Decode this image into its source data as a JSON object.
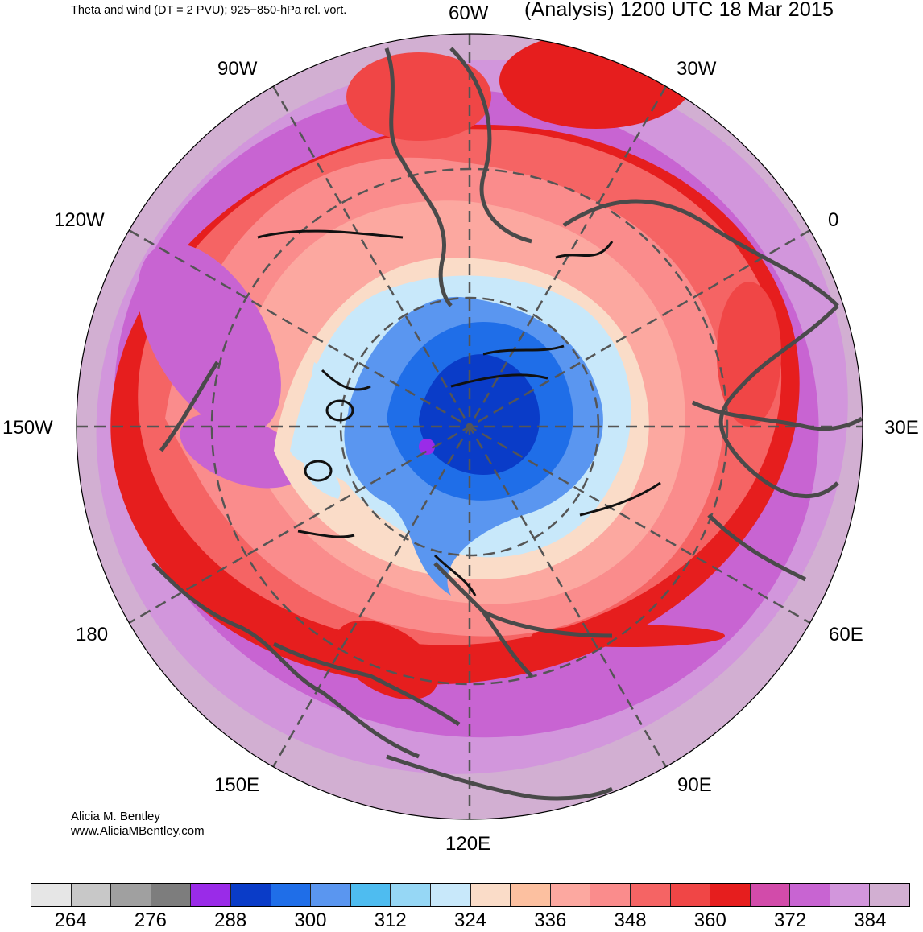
{
  "header": {
    "left_title": "Theta and wind (DT = 2 PVU); 925−850-hPa rel. vort.",
    "right_title": "(Analysis) 1200 UTC 18 Mar 2015"
  },
  "longitude_labels": {
    "lon_60w": "60W",
    "lon_30w": "30W",
    "lon_0": "0",
    "lon_30e": "30E",
    "lon_60e": "60E",
    "lon_90e": "90E",
    "lon_120e": "120E",
    "lon_150e": "150E",
    "lon_180": "180",
    "lon_150w": "150W",
    "lon_120w": "120W",
    "lon_90w": "90W"
  },
  "credit": {
    "author": "Alicia M. Bentley",
    "website": "www.AliciaMBentley.com"
  },
  "colorbar": {
    "colors": [
      "#e6e6e6",
      "#c8c8c8",
      "#a0a0a0",
      "#7d7d7d",
      "#9a2be8",
      "#0a3cc8",
      "#1f6ee8",
      "#5a96f0",
      "#4ebcf0",
      "#96d7f5",
      "#c8e8fa",
      "#fadcc8",
      "#fcc0a0",
      "#fca8a0",
      "#fa8c8c",
      "#f56464",
      "#f04646",
      "#e61e1e",
      "#d24baa",
      "#c864d2",
      "#d296dc",
      "#d2afd2"
    ],
    "tick_labels": [
      "264",
      "276",
      "288",
      "300",
      "312",
      "324",
      "336",
      "348",
      "360",
      "372",
      "384"
    ]
  }
}
